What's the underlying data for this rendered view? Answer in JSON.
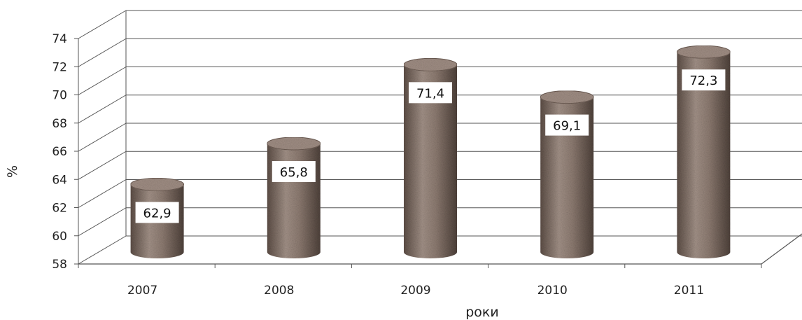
{
  "chart_data": {
    "type": "bar",
    "style": "3d-cylinder",
    "categories": [
      "2007",
      "2008",
      "2009",
      "2010",
      "2011"
    ],
    "values": [
      62.9,
      65.8,
      71.4,
      69.1,
      72.3
    ],
    "value_labels": [
      "62,9",
      "65,8",
      "71,4",
      "69,1",
      "72,3"
    ],
    "xlabel": "роки",
    "ylabel": "%",
    "ylim": [
      58,
      74
    ],
    "yticks": [
      "58",
      "60",
      "62",
      "64",
      "66",
      "68",
      "70",
      "72",
      "74"
    ],
    "grid": true,
    "legend": "none",
    "colors": {
      "bar": "#8e7c72",
      "bar_dark": "#5e4f47",
      "grid": "#555555"
    }
  }
}
